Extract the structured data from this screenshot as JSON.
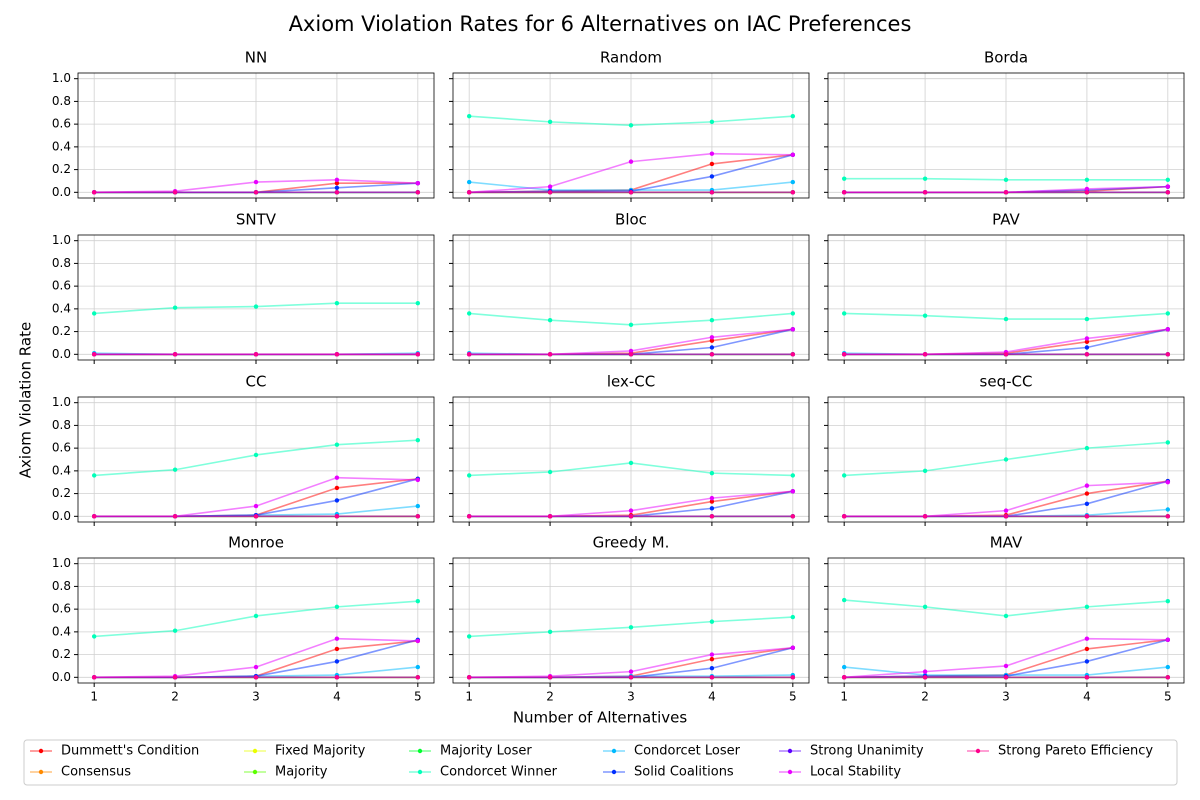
{
  "chart_data": {
    "type": "line",
    "title": "Axiom Violation Rates for 6 Alternatives on IAC Preferences",
    "x_label": "Number of Alternatives",
    "y_label": "Axiom Violation Rate",
    "x": [
      1,
      2,
      3,
      4,
      5
    ],
    "xlim": [
      0.8,
      5.2
    ],
    "xticks": [
      1,
      2,
      3,
      4,
      5
    ],
    "ylim": [
      -0.05,
      1.05
    ],
    "yticks": [
      {
        "value": 0,
        "label": "0.0"
      },
      {
        "value": 0.2,
        "label": "0.2"
      },
      {
        "value": 0.4,
        "label": "0.4"
      },
      {
        "value": 0.6,
        "label": "0.6"
      },
      {
        "value": 0.8,
        "label": "0.8"
      },
      {
        "value": 1,
        "label": "1.0"
      }
    ],
    "grid": true,
    "legend": "bottom",
    "series": [
      {
        "name": "Dummett's Condition",
        "color": "#ff0000"
      },
      {
        "name": "Consensus",
        "color": "#ff8a00"
      },
      {
        "name": "Fixed Majority",
        "color": "#eaff00"
      },
      {
        "name": "Majority",
        "color": "#5cff00"
      },
      {
        "name": "Majority Loser",
        "color": "#00ff2e"
      },
      {
        "name": "Condorcet Winner",
        "color": "#00ffb9"
      },
      {
        "name": "Condorcet Loser",
        "color": "#00baff"
      },
      {
        "name": "Solid Coalitions",
        "color": "#002fff"
      },
      {
        "name": "Strong Unanimity",
        "color": "#5d00ff"
      },
      {
        "name": "Local Stability",
        "color": "#e800ff"
      },
      {
        "name": "Strong Pareto Efficiency",
        "color": "#ff008b"
      }
    ],
    "panels": [
      {
        "title": "NN",
        "values": [
          [
            0,
            0,
            0,
            0.08,
            0.08
          ],
          [
            0,
            0,
            0,
            0,
            0
          ],
          [
            0,
            0,
            0,
            0,
            0
          ],
          [
            0,
            0,
            0,
            0,
            0
          ],
          [
            0,
            0,
            0,
            0,
            0
          ],
          [
            0,
            0,
            0,
            0,
            0
          ],
          [
            0,
            0,
            0,
            0,
            0
          ],
          [
            0,
            0,
            0,
            0.04,
            0.08
          ],
          [
            0,
            0,
            0,
            0,
            0
          ],
          [
            0,
            0.01,
            0.09,
            0.11,
            0.08
          ],
          [
            0,
            0,
            0,
            0,
            0
          ]
        ]
      },
      {
        "title": "Random",
        "values": [
          [
            0,
            0.01,
            0.02,
            0.25,
            0.33
          ],
          [
            0,
            0,
            0,
            0,
            0
          ],
          [
            0,
            0,
            0,
            0,
            0
          ],
          [
            0,
            0,
            0,
            0,
            0
          ],
          [
            0,
            0,
            0,
            0,
            0
          ],
          [
            0.67,
            0.62,
            0.59,
            0.62,
            0.67
          ],
          [
            0.09,
            0.02,
            0.02,
            0.02,
            0.09
          ],
          [
            0,
            0.01,
            0.01,
            0.14,
            0.33
          ],
          [
            0,
            0,
            0,
            0,
            0
          ],
          [
            0,
            0.05,
            0.27,
            0.34,
            0.33
          ],
          [
            0,
            0,
            0,
            0,
            0
          ]
        ]
      },
      {
        "title": "Borda",
        "values": [
          [
            0,
            0,
            0,
            0.01,
            0.05
          ],
          [
            0,
            0,
            0,
            0,
            0
          ],
          [
            0,
            0,
            0,
            0,
            0
          ],
          [
            0,
            0,
            0,
            0,
            0
          ],
          [
            0,
            0,
            0,
            0,
            0
          ],
          [
            0.12,
            0.12,
            0.11,
            0.11,
            0.11
          ],
          [
            0,
            0,
            0,
            0,
            0
          ],
          [
            0,
            0,
            0,
            0.02,
            0.05
          ],
          [
            0,
            0,
            0,
            0,
            0
          ],
          [
            0,
            0,
            0,
            0.03,
            0.05
          ],
          [
            0,
            0,
            0,
            0,
            0
          ]
        ]
      },
      {
        "title": "SNTV",
        "values": [
          [
            0,
            0,
            0,
            0,
            0
          ],
          [
            0,
            0,
            0,
            0,
            0
          ],
          [
            0,
            0,
            0,
            0,
            0
          ],
          [
            0,
            0,
            0,
            0,
            0
          ],
          [
            0,
            0,
            0,
            0,
            0
          ],
          [
            0.36,
            0.41,
            0.42,
            0.45,
            0.45
          ],
          [
            0.01,
            0,
            0,
            0,
            0.01
          ],
          [
            0,
            0,
            0,
            0,
            0
          ],
          [
            0,
            0,
            0,
            0,
            0
          ],
          [
            0,
            0,
            0,
            0,
            0
          ],
          [
            0,
            0,
            0,
            0,
            0
          ]
        ]
      },
      {
        "title": "Bloc",
        "values": [
          [
            0,
            0,
            0.01,
            0.12,
            0.22
          ],
          [
            0,
            0,
            0,
            0,
            0
          ],
          [
            0,
            0,
            0,
            0,
            0
          ],
          [
            0,
            0,
            0,
            0,
            0
          ],
          [
            0,
            0,
            0,
            0,
            0
          ],
          [
            0.36,
            0.3,
            0.26,
            0.3,
            0.36
          ],
          [
            0.01,
            0,
            0,
            0,
            0
          ],
          [
            0,
            0,
            0,
            0.06,
            0.22
          ],
          [
            0,
            0,
            0,
            0,
            0
          ],
          [
            0,
            0,
            0.03,
            0.15,
            0.22
          ],
          [
            0,
            0,
            0,
            0,
            0
          ]
        ]
      },
      {
        "title": "PAV",
        "values": [
          [
            0,
            0,
            0.01,
            0.11,
            0.22
          ],
          [
            0,
            0,
            0,
            0,
            0
          ],
          [
            0,
            0,
            0,
            0,
            0
          ],
          [
            0,
            0,
            0,
            0,
            0
          ],
          [
            0,
            0,
            0,
            0,
            0
          ],
          [
            0.36,
            0.34,
            0.31,
            0.31,
            0.36
          ],
          [
            0.01,
            0,
            0,
            0,
            0
          ],
          [
            0,
            0,
            0,
            0.06,
            0.22
          ],
          [
            0,
            0,
            0,
            0,
            0
          ],
          [
            0,
            0,
            0.02,
            0.14,
            0.22
          ],
          [
            0,
            0,
            0,
            0,
            0
          ]
        ]
      },
      {
        "title": "CC",
        "values": [
          [
            0,
            0,
            0.01,
            0.25,
            0.33
          ],
          [
            0,
            0,
            0,
            0,
            0
          ],
          [
            0,
            0,
            0,
            0,
            0
          ],
          [
            0,
            0,
            0,
            0,
            0
          ],
          [
            0,
            0,
            0,
            0,
            0
          ],
          [
            0.36,
            0.41,
            0.54,
            0.63,
            0.67
          ],
          [
            0,
            0,
            0.01,
            0.02,
            0.09
          ],
          [
            0,
            0,
            0.01,
            0.14,
            0.33
          ],
          [
            0,
            0,
            0,
            0,
            0
          ],
          [
            0,
            0,
            0.09,
            0.34,
            0.32
          ],
          [
            0,
            0,
            0,
            0,
            0
          ]
        ]
      },
      {
        "title": "lex-CC",
        "values": [
          [
            0,
            0,
            0.01,
            0.13,
            0.22
          ],
          [
            0,
            0,
            0,
            0,
            0
          ],
          [
            0,
            0,
            0,
            0,
            0
          ],
          [
            0,
            0,
            0,
            0,
            0
          ],
          [
            0,
            0,
            0,
            0,
            0
          ],
          [
            0.36,
            0.39,
            0.47,
            0.38,
            0.36
          ],
          [
            0,
            0,
            0,
            0,
            0
          ],
          [
            0,
            0,
            0,
            0.07,
            0.22
          ],
          [
            0,
            0,
            0,
            0,
            0
          ],
          [
            0,
            0,
            0.05,
            0.16,
            0.22
          ],
          [
            0,
            0,
            0,
            0,
            0
          ]
        ]
      },
      {
        "title": "seq-CC",
        "values": [
          [
            0,
            0,
            0.01,
            0.2,
            0.31
          ],
          [
            0,
            0,
            0,
            0,
            0
          ],
          [
            0,
            0,
            0,
            0,
            0
          ],
          [
            0,
            0,
            0,
            0,
            0
          ],
          [
            0,
            0,
            0,
            0,
            0
          ],
          [
            0.36,
            0.4,
            0.5,
            0.6,
            0.65
          ],
          [
            0,
            0,
            0,
            0.01,
            0.06
          ],
          [
            0,
            0,
            0,
            0.11,
            0.31
          ],
          [
            0,
            0,
            0,
            0,
            0
          ],
          [
            0,
            0,
            0.05,
            0.27,
            0.3
          ],
          [
            0,
            0,
            0,
            0,
            0
          ]
        ]
      },
      {
        "title": "Monroe",
        "values": [
          [
            0,
            0,
            0.01,
            0.25,
            0.32
          ],
          [
            0,
            0,
            0,
            0,
            0
          ],
          [
            0,
            0,
            0,
            0,
            0
          ],
          [
            0,
            0,
            0,
            0,
            0
          ],
          [
            0,
            0,
            0,
            0,
            0
          ],
          [
            0.36,
            0.41,
            0.54,
            0.62,
            0.67
          ],
          [
            0,
            0,
            0.01,
            0.02,
            0.09
          ],
          [
            0,
            0,
            0.01,
            0.14,
            0.33
          ],
          [
            0,
            0,
            0,
            0,
            0
          ],
          [
            0,
            0.01,
            0.09,
            0.34,
            0.32
          ],
          [
            0,
            0,
            0,
            0,
            0
          ]
        ]
      },
      {
        "title": "Greedy M.",
        "values": [
          [
            0,
            0,
            0.01,
            0.16,
            0.26
          ],
          [
            0,
            0,
            0,
            0,
            0
          ],
          [
            0,
            0,
            0,
            0,
            0
          ],
          [
            0,
            0,
            0,
            0,
            0
          ],
          [
            0,
            0,
            0,
            0,
            0
          ],
          [
            0.36,
            0.4,
            0.44,
            0.49,
            0.53
          ],
          [
            0,
            0,
            0.01,
            0.01,
            0.02
          ],
          [
            0,
            0,
            0,
            0.08,
            0.26
          ],
          [
            0,
            0,
            0,
            0,
            0
          ],
          [
            0,
            0.01,
            0.05,
            0.2,
            0.26
          ],
          [
            0,
            0,
            0,
            0,
            0
          ]
        ]
      },
      {
        "title": "MAV",
        "values": [
          [
            0,
            0.01,
            0.02,
            0.25,
            0.33
          ],
          [
            0,
            0,
            0,
            0,
            0
          ],
          [
            0,
            0,
            0,
            0,
            0
          ],
          [
            0,
            0,
            0,
            0,
            0
          ],
          [
            0,
            0,
            0,
            0,
            0
          ],
          [
            0.68,
            0.62,
            0.54,
            0.62,
            0.67
          ],
          [
            0.09,
            0.02,
            0.02,
            0.02,
            0.09
          ],
          [
            0,
            0.01,
            0.01,
            0.14,
            0.33
          ],
          [
            0,
            0,
            0,
            0,
            0
          ],
          [
            0,
            0.05,
            0.1,
            0.34,
            0.33
          ],
          [
            0,
            0,
            0,
            0,
            0
          ]
        ]
      }
    ]
  }
}
